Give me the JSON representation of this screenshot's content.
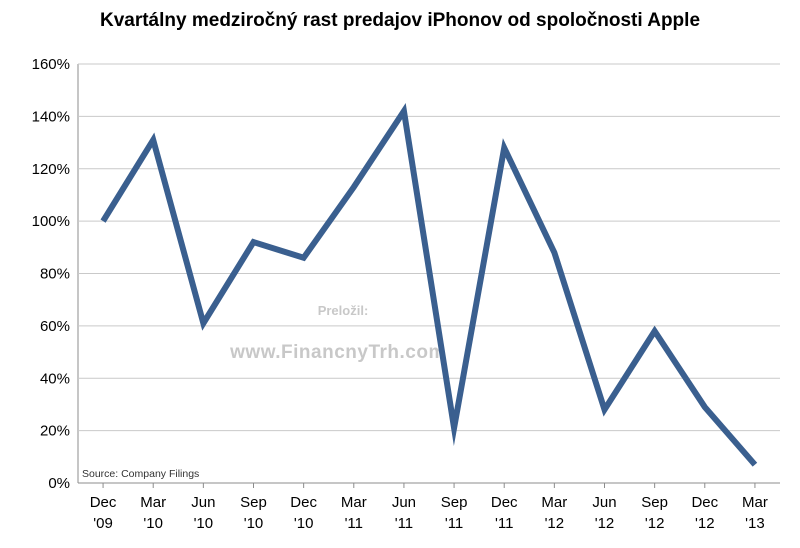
{
  "chart_data": {
    "type": "line",
    "title": "Kvartálny medziročný rast predajov iPhonov od spoločnosti Apple",
    "xlabel": "",
    "ylabel": "",
    "categories": [
      [
        "Dec",
        "'09"
      ],
      [
        "Mar",
        "'10"
      ],
      [
        "Jun",
        "'10"
      ],
      [
        "Sep",
        "'10"
      ],
      [
        "Dec",
        "'10"
      ],
      [
        "Mar",
        "'11"
      ],
      [
        "Jun",
        "'11"
      ],
      [
        "Sep",
        "'11"
      ],
      [
        "Dec",
        "'11"
      ],
      [
        "Mar",
        "'12"
      ],
      [
        "Jun",
        "'12"
      ],
      [
        "Sep",
        "'12"
      ],
      [
        "Dec",
        "'12"
      ],
      [
        "Mar",
        "'13"
      ]
    ],
    "series": [
      {
        "values": [
          100,
          131,
          61,
          92,
          86,
          113,
          142,
          21,
          128,
          88,
          28,
          58,
          29,
          7
        ]
      }
    ],
    "ylim": [
      0,
      160
    ],
    "yticks": [
      0,
      20,
      40,
      60,
      80,
      100,
      120,
      140,
      160
    ],
    "ytick_format": "%",
    "grid": true,
    "line_color": "#3a5f8f",
    "grid_color": "#c9c9c9"
  },
  "source_note": "Source: Company Filings",
  "watermark": {
    "line1": "Preložil:",
    "line2": "www.FinancnyTrh.com"
  }
}
